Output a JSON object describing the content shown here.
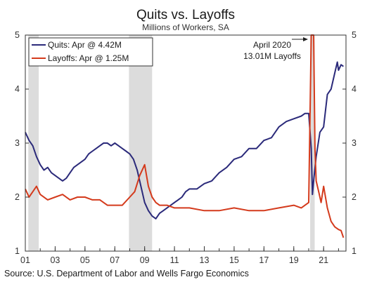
{
  "chart_data": {
    "type": "line",
    "title": "Quits vs. Layoffs",
    "subtitle": "Millions of Workers, SA",
    "source": "Source: U.S. Department of Labor and Wells Fargo Economics",
    "xlim": [
      2001.0,
      2022.5
    ],
    "ylim": [
      1,
      5
    ],
    "x_ticks": [
      2001,
      2003,
      2005,
      2007,
      2009,
      2011,
      2013,
      2015,
      2017,
      2019,
      2021
    ],
    "x_tick_labels": [
      "01",
      "03",
      "05",
      "07",
      "09",
      "11",
      "13",
      "15",
      "17",
      "19",
      "21"
    ],
    "y_ticks": [
      1,
      2,
      3,
      4,
      5
    ],
    "y_tick_labels": [
      "1",
      "2",
      "3",
      "4",
      "5"
    ],
    "legend_position": "top-left",
    "recessions": [
      [
        2001.2,
        2001.9
      ],
      [
        2007.95,
        2009.5
      ],
      [
        2020.1,
        2020.4
      ]
    ],
    "annotation": {
      "lines": [
        "April 2020",
        "13.01M Layoffs"
      ],
      "x": 2020.3,
      "y": 5.0
    },
    "series": [
      {
        "name": "Quits: Apr @ 4.42M",
        "color": "#2b2a7a",
        "x": [
          2001.0,
          2001.25,
          2001.5,
          2001.75,
          2002.0,
          2002.25,
          2002.5,
          2002.75,
          2003.0,
          2003.25,
          2003.5,
          2003.75,
          2004.0,
          2004.25,
          2004.5,
          2004.75,
          2005.0,
          2005.25,
          2005.5,
          2005.75,
          2006.0,
          2006.25,
          2006.5,
          2006.75,
          2007.0,
          2007.25,
          2007.5,
          2007.75,
          2008.0,
          2008.25,
          2008.5,
          2008.75,
          2009.0,
          2009.25,
          2009.5,
          2009.75,
          2010.0,
          2010.25,
          2010.5,
          2010.75,
          2011.0,
          2011.25,
          2011.5,
          2011.75,
          2012.0,
          2012.5,
          2013.0,
          2013.5,
          2014.0,
          2014.5,
          2015.0,
          2015.5,
          2016.0,
          2016.5,
          2017.0,
          2017.5,
          2018.0,
          2018.5,
          2019.0,
          2019.5,
          2019.75,
          2020.0,
          2020.17,
          2020.25,
          2020.33,
          2020.5,
          2020.75,
          2021.0,
          2021.25,
          2021.5,
          2021.75,
          2021.92,
          2022.0,
          2022.17,
          2022.33
        ],
        "values": [
          3.2,
          3.05,
          2.95,
          2.75,
          2.6,
          2.5,
          2.55,
          2.45,
          2.4,
          2.35,
          2.3,
          2.35,
          2.45,
          2.55,
          2.6,
          2.65,
          2.7,
          2.8,
          2.85,
          2.9,
          2.95,
          3.0,
          3.0,
          2.95,
          3.0,
          2.95,
          2.9,
          2.85,
          2.8,
          2.7,
          2.5,
          2.2,
          1.9,
          1.75,
          1.65,
          1.6,
          1.7,
          1.75,
          1.8,
          1.85,
          1.9,
          1.95,
          2.0,
          2.1,
          2.15,
          2.15,
          2.25,
          2.3,
          2.45,
          2.55,
          2.7,
          2.75,
          2.9,
          2.9,
          3.05,
          3.1,
          3.3,
          3.4,
          3.45,
          3.5,
          3.55,
          3.55,
          2.9,
          2.05,
          2.3,
          2.75,
          3.2,
          3.3,
          3.9,
          4.0,
          4.3,
          4.5,
          4.35,
          4.45,
          4.42
        ]
      },
      {
        "name": "Layoffs: Apr @ 1.25M",
        "color": "#d43a1c",
        "x": [
          2001.0,
          2001.25,
          2001.5,
          2001.75,
          2002.0,
          2002.5,
          2003.0,
          2003.5,
          2004.0,
          2004.5,
          2005.0,
          2005.5,
          2006.0,
          2006.5,
          2007.0,
          2007.5,
          2008.0,
          2008.33,
          2008.67,
          2009.0,
          2009.25,
          2009.5,
          2009.75,
          2010.0,
          2010.5,
          2011.0,
          2011.5,
          2012.0,
          2013.0,
          2014.0,
          2015.0,
          2016.0,
          2017.0,
          2018.0,
          2019.0,
          2019.5,
          2019.75,
          2020.0,
          2020.17,
          2020.25,
          2020.33,
          2020.42,
          2020.5,
          2020.67,
          2020.83,
          2021.0,
          2021.25,
          2021.5,
          2021.75,
          2022.0,
          2022.17,
          2022.33
        ],
        "values": [
          2.15,
          2.0,
          2.1,
          2.2,
          2.05,
          1.95,
          2.0,
          2.05,
          1.95,
          2.0,
          2.0,
          1.95,
          1.95,
          1.85,
          1.85,
          1.85,
          2.0,
          2.1,
          2.4,
          2.6,
          2.2,
          2.0,
          1.9,
          1.85,
          1.85,
          1.8,
          1.8,
          1.8,
          1.75,
          1.75,
          1.8,
          1.75,
          1.75,
          1.8,
          1.85,
          1.8,
          1.85,
          1.9,
          5.0,
          5.0,
          5.0,
          2.9,
          2.3,
          2.1,
          1.9,
          2.2,
          1.8,
          1.55,
          1.45,
          1.4,
          1.38,
          1.25
        ]
      }
    ]
  }
}
